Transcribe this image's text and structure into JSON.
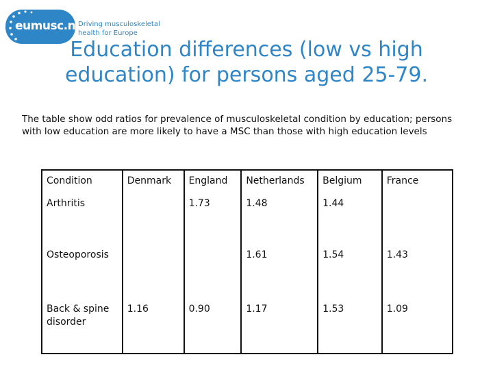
{
  "logo": {
    "wordmark": "eumusc.net",
    "tagline_line1": "Driving musculoskeletal",
    "tagline_line2": "health for Europe",
    "color": "#2f86c7"
  },
  "slide": {
    "title_line1": "Education differences (low vs high",
    "title_line2": "education) for persons aged 25-79.",
    "intro": "The table show odd ratios for prevalence of musculoskeletal condition by education; persons with low education are more likely to have a MSC than those with high education levels"
  },
  "table": {
    "headers": [
      "Condition",
      "Denmark",
      "England",
      "Netherlands",
      "Belgium",
      "France"
    ],
    "rows": [
      [
        "Arthritis",
        "",
        "1.73",
        "1.48",
        "1.44",
        ""
      ],
      [
        "Osteoporosis",
        "",
        "",
        "1.61",
        "1.54",
        "1.43"
      ],
      [
        "Back & spine disorder",
        "1.16",
        "0.90",
        "1.17",
        "1.53",
        "1.09"
      ]
    ]
  }
}
